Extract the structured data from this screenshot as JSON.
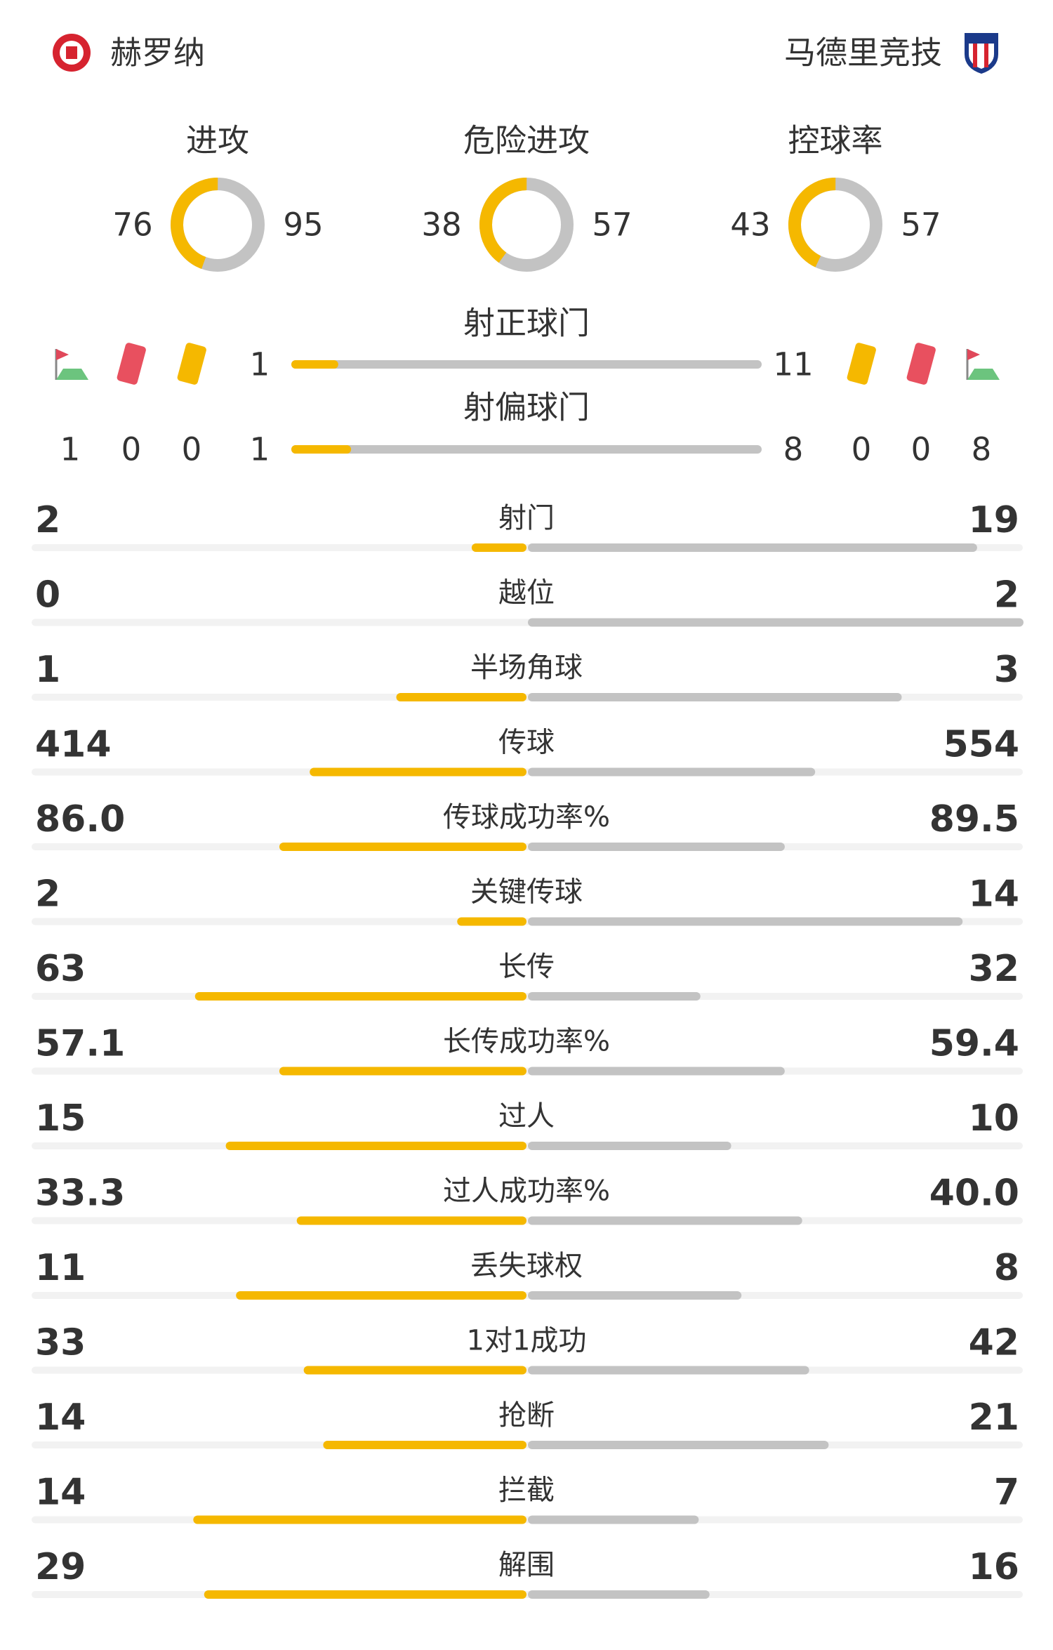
{
  "teams": {
    "home": {
      "name": "赫罗纳"
    },
    "away": {
      "name": "马德里竞技"
    }
  },
  "donuts": [
    {
      "label": "进攻",
      "home": 76,
      "away": 95
    },
    {
      "label": "危险进攻",
      "home": 38,
      "away": 57
    },
    {
      "label": "控球率",
      "home": 43,
      "away": 57
    }
  ],
  "cards": {
    "home": {
      "corners": 1,
      "red": 0,
      "yellow": 0
    },
    "away": {
      "yellow": 0,
      "red": 0,
      "corners": 8
    }
  },
  "shots_on": {
    "label": "射正球门",
    "home": 1,
    "away": 11
  },
  "shots_off": {
    "label": "射偏球门",
    "home": 1,
    "away": 8
  },
  "stats": [
    {
      "label": "射门",
      "home": 2,
      "away": 19
    },
    {
      "label": "越位",
      "home": 0,
      "away": 2
    },
    {
      "label": "半场角球",
      "home": 1,
      "away": 3
    },
    {
      "label": "传球",
      "home": 414,
      "away": 554
    },
    {
      "label": "传球成功率%",
      "home": {
        "value": 86,
        "label": "86.0"
      },
      "away": 89.5
    },
    {
      "label": "关键传球",
      "home": 2,
      "away": 14
    },
    {
      "label": "长传",
      "home": 63,
      "away": 32
    },
    {
      "label": "长传成功率%",
      "home": 57.1,
      "away": 59.4
    },
    {
      "label": "过人",
      "home": 15,
      "away": 10
    },
    {
      "label": "过人成功率%",
      "home": 33.3,
      "away": {
        "value": 40,
        "label": "40.0"
      }
    },
    {
      "label": "丢失球权",
      "home": 11,
      "away": 8
    },
    {
      "label": "1对1成功",
      "home": 33,
      "away": 42
    },
    {
      "label": "抢断",
      "home": 14,
      "away": 21
    },
    {
      "label": "拦截",
      "home": 14,
      "away": 7
    },
    {
      "label": "解围",
      "home": 29,
      "away": 16
    }
  ]
}
